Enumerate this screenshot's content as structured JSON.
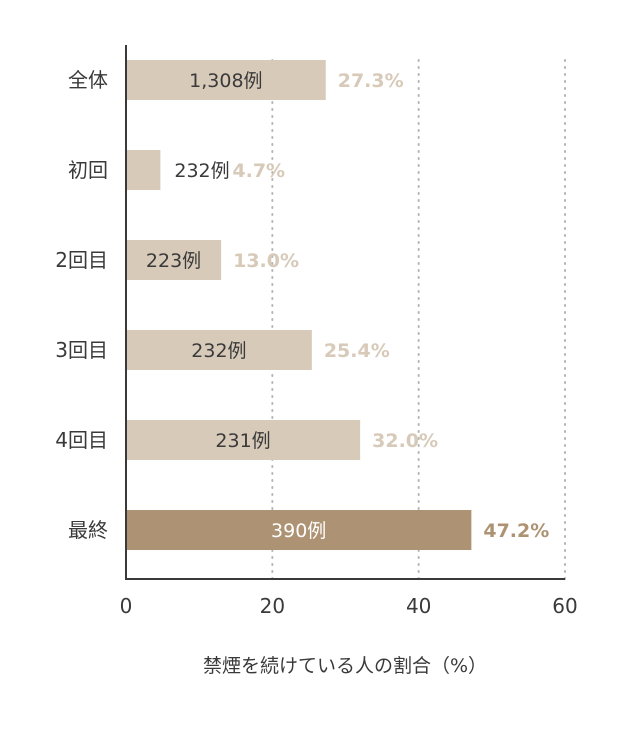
{
  "chart_data": {
    "type": "bar",
    "orientation": "horizontal",
    "categories": [
      "全体",
      "初回",
      "2回目",
      "3回目",
      "4回目",
      "最終"
    ],
    "values": [
      27.3,
      4.7,
      13.0,
      25.4,
      32.0,
      47.2
    ],
    "value_labels": [
      "27.3%",
      "4.7%",
      "13.0%",
      "25.4%",
      "32.0%",
      "47.2%"
    ],
    "counts": [
      "1,308例",
      "232例",
      "223例",
      "232例",
      "231例",
      "390例"
    ],
    "highlight_index": 5,
    "xlabel": "禁煙を続けている人の割合（%）",
    "xlim": [
      0,
      60
    ],
    "xticks": [
      0,
      20,
      40,
      60
    ],
    "grid": "vertical dotted",
    "colors": {
      "bar": "#d7cab9",
      "bar_highlight": "#ad9373",
      "pct_text": "#d7cab9",
      "pct_text_highlight": "#ad9373",
      "count_text": "#3a3a3a",
      "count_text_highlight": "#ffffff",
      "axis": "#3a3a3a",
      "grid": "#b5b5b5"
    }
  }
}
